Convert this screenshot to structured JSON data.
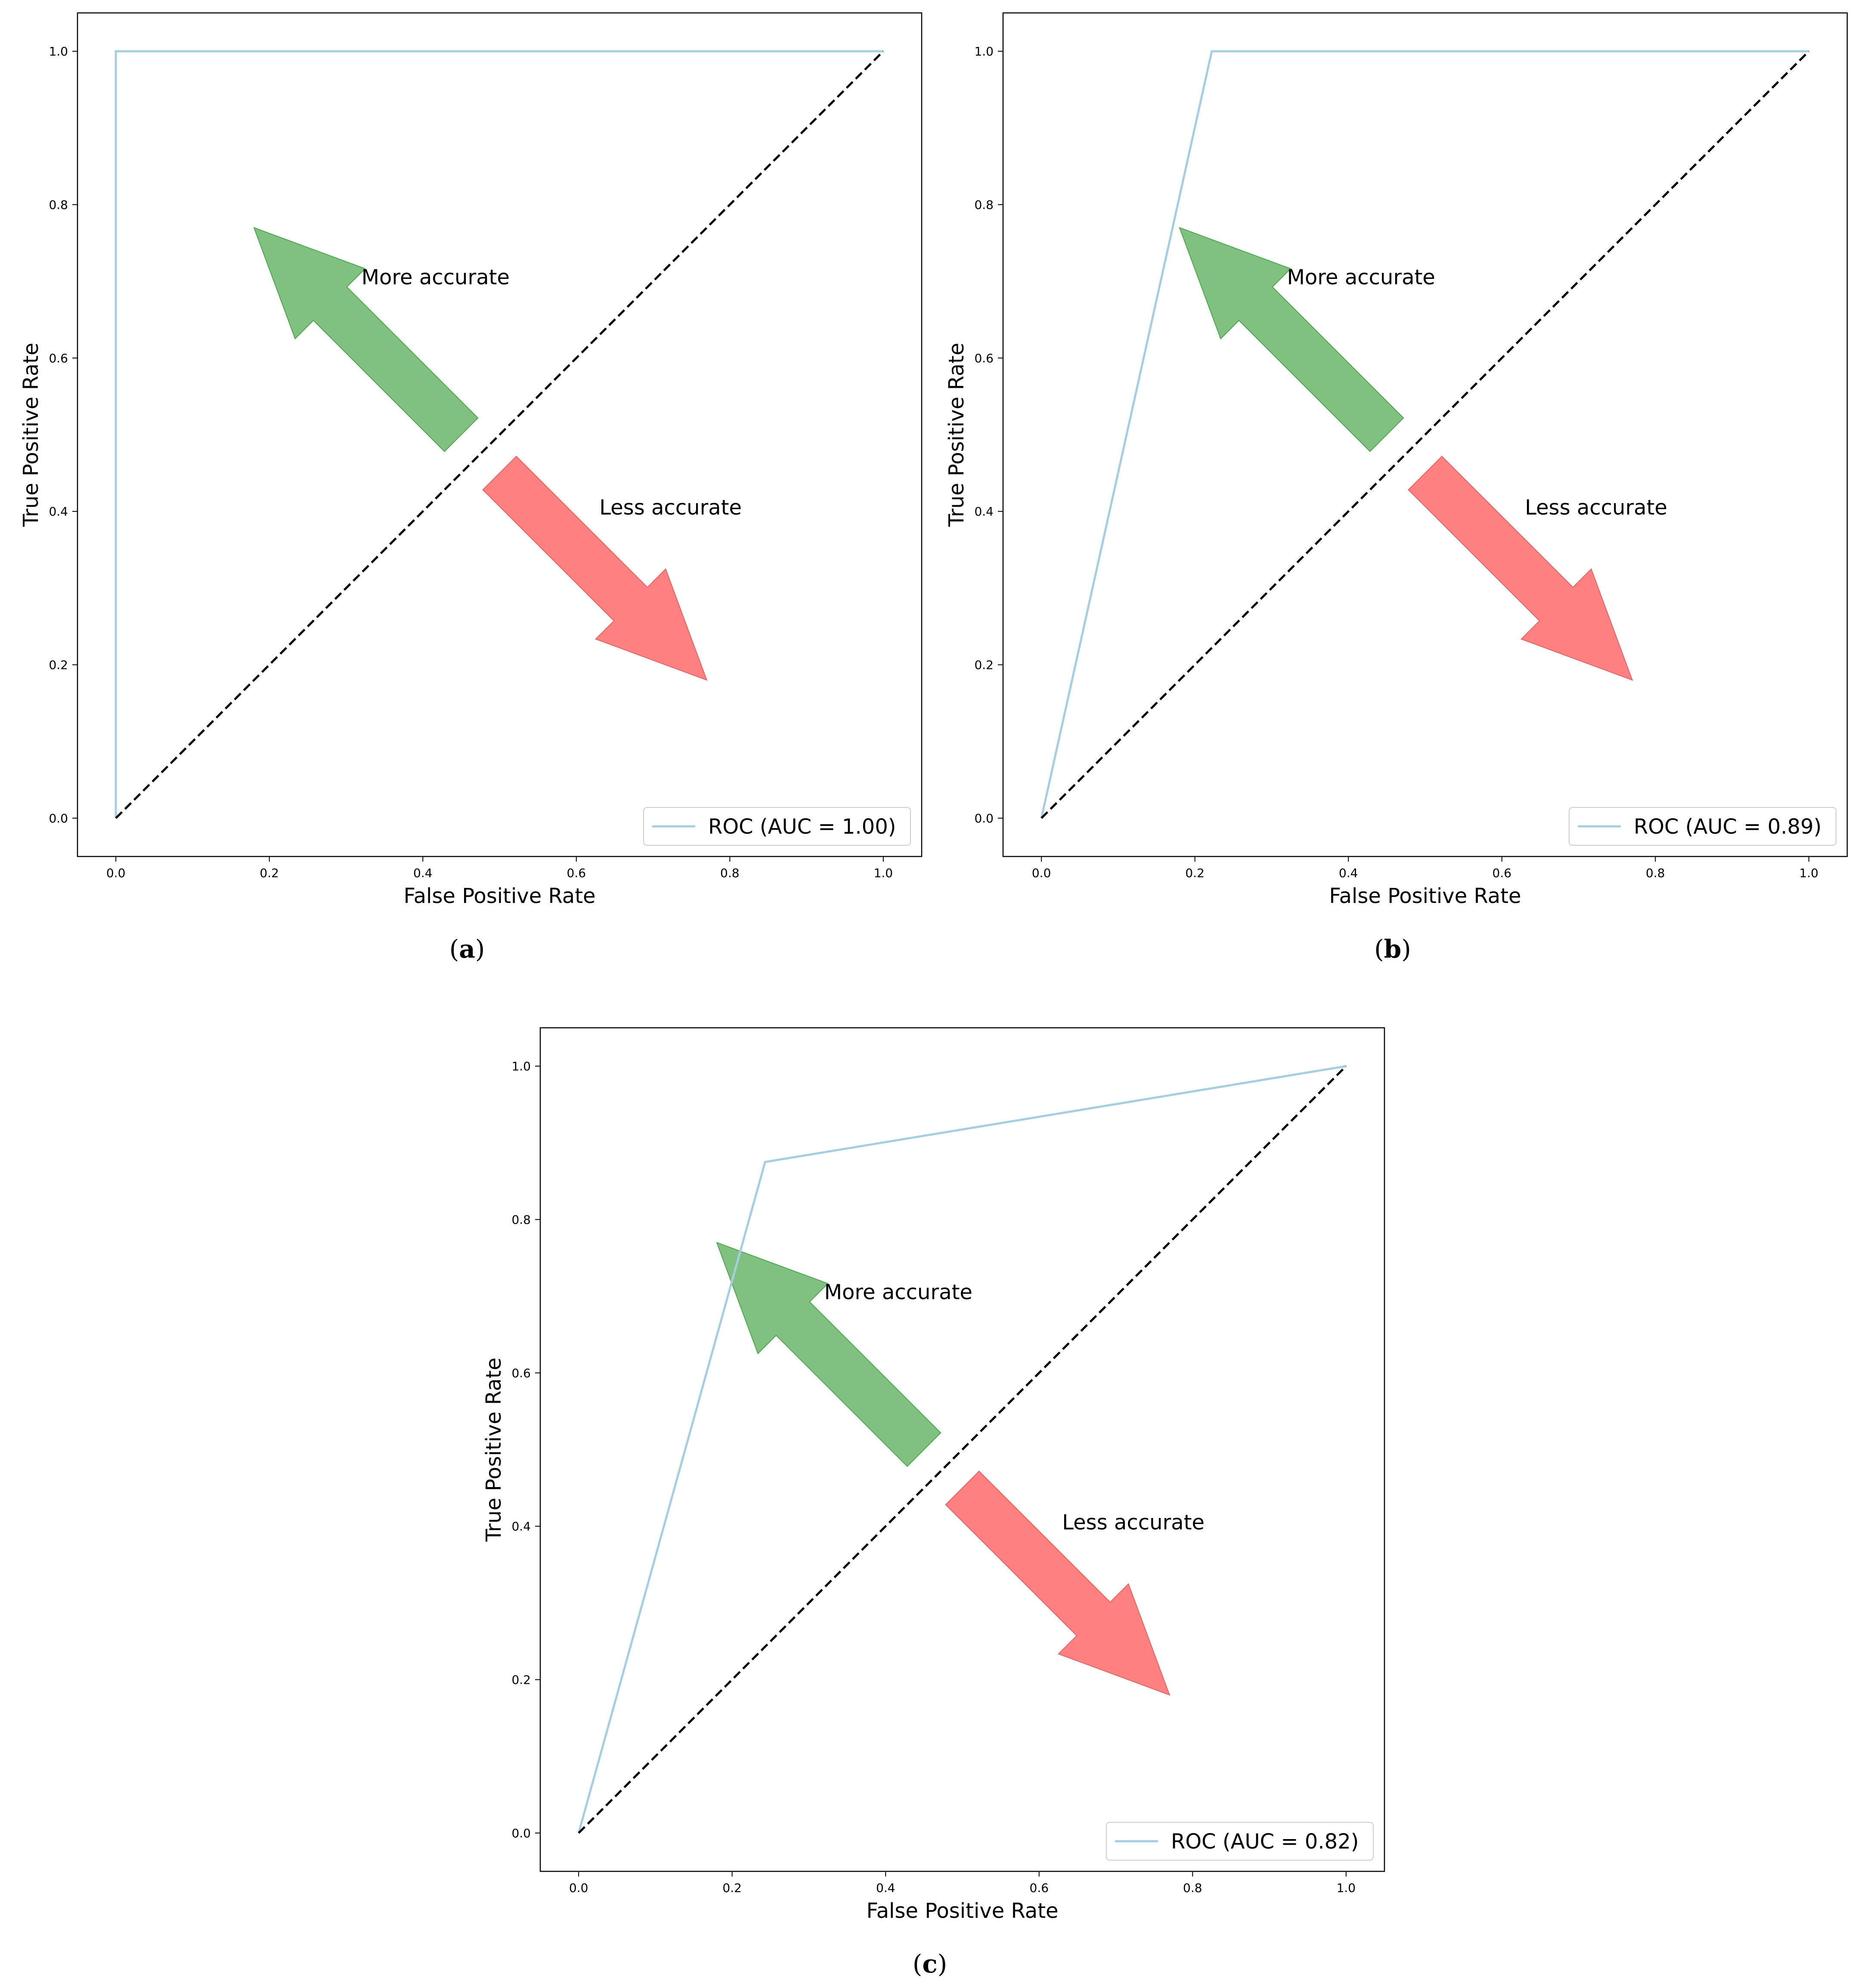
{
  "colors": {
    "roc_line": "#a6cee3",
    "diagonal": "#000000",
    "more_arrow_fill": "#80c080",
    "more_arrow_edge": "#4ca64c",
    "less_arrow_fill": "#ff8080",
    "less_arrow_edge": "#e06666",
    "legend_border": "#cccccc"
  },
  "chart_data": [
    {
      "type": "line",
      "caption": "(a)",
      "caption_letter": "a",
      "xlabel": "False Positive Rate",
      "ylabel": "True Positive Rate",
      "xlim": [
        -0.05,
        1.05
      ],
      "ylim": [
        -0.05,
        1.05
      ],
      "xticks": [
        "0.0",
        "0.2",
        "0.4",
        "0.6",
        "0.8",
        "1.0"
      ],
      "yticks": [
        "0.0",
        "0.2",
        "0.4",
        "0.6",
        "0.8",
        "1.0"
      ],
      "series": [
        {
          "name": "ROC (AUC = 1.00)",
          "x": [
            0.0,
            0.0,
            1.0
          ],
          "y": [
            0.0,
            1.0,
            1.0
          ]
        },
        {
          "name": "chance",
          "style": "dashed",
          "x": [
            0.0,
            1.0
          ],
          "y": [
            0.0,
            1.0
          ]
        }
      ],
      "legend": {
        "label": "ROC (AUC = 1.00)",
        "location": "lower right"
      },
      "annotations": [
        {
          "text": "More accurate",
          "x": 0.32,
          "y": 0.705,
          "arrow_from": [
            0.45,
            0.5
          ],
          "arrow_to": [
            0.18,
            0.77
          ],
          "direction": "up-left"
        },
        {
          "text": "Less accurate",
          "x": 0.63,
          "y": 0.405,
          "arrow_from": [
            0.5,
            0.45
          ],
          "arrow_to": [
            0.77,
            0.18
          ],
          "direction": "down-right"
        }
      ]
    },
    {
      "type": "line",
      "caption": "(b)",
      "caption_letter": "b",
      "xlabel": "False Positive Rate",
      "ylabel": "True Positive Rate",
      "xlim": [
        -0.05,
        1.05
      ],
      "ylim": [
        -0.05,
        1.05
      ],
      "xticks": [
        "0.0",
        "0.2",
        "0.4",
        "0.6",
        "0.8",
        "1.0"
      ],
      "yticks": [
        "0.0",
        "0.2",
        "0.4",
        "0.6",
        "0.8",
        "1.0"
      ],
      "series": [
        {
          "name": "ROC (AUC = 0.89)",
          "x": [
            0.0,
            0.222,
            1.0
          ],
          "y": [
            0.0,
            1.0,
            1.0
          ]
        },
        {
          "name": "chance",
          "style": "dashed",
          "x": [
            0.0,
            1.0
          ],
          "y": [
            0.0,
            1.0
          ]
        }
      ],
      "legend": {
        "label": "ROC (AUC = 0.89)",
        "location": "lower right"
      },
      "annotations": [
        {
          "text": "More accurate",
          "x": 0.32,
          "y": 0.705,
          "arrow_from": [
            0.45,
            0.5
          ],
          "arrow_to": [
            0.18,
            0.77
          ],
          "direction": "up-left"
        },
        {
          "text": "Less accurate",
          "x": 0.63,
          "y": 0.405,
          "arrow_from": [
            0.5,
            0.45
          ],
          "arrow_to": [
            0.77,
            0.18
          ],
          "direction": "down-right"
        }
      ]
    },
    {
      "type": "line",
      "caption": "(c)",
      "caption_letter": "c",
      "xlabel": "False Positive Rate",
      "ylabel": "True Positive Rate",
      "xlim": [
        -0.05,
        1.05
      ],
      "ylim": [
        -0.05,
        1.05
      ],
      "xticks": [
        "0.0",
        "0.2",
        "0.4",
        "0.6",
        "0.8",
        "1.0"
      ],
      "yticks": [
        "0.0",
        "0.2",
        "0.4",
        "0.6",
        "0.8",
        "1.0"
      ],
      "series": [
        {
          "name": "ROC (AUC = 0.82)",
          "x": [
            0.0,
            0.243,
            1.0
          ],
          "y": [
            0.0,
            0.875,
            1.0
          ]
        },
        {
          "name": "chance",
          "style": "dashed",
          "x": [
            0.0,
            1.0
          ],
          "y": [
            0.0,
            1.0
          ]
        }
      ],
      "legend": {
        "label": "ROC (AUC = 0.82)",
        "location": "lower right"
      },
      "annotations": [
        {
          "text": "More accurate",
          "x": 0.32,
          "y": 0.705,
          "arrow_from": [
            0.45,
            0.5
          ],
          "arrow_to": [
            0.18,
            0.77
          ],
          "direction": "up-left"
        },
        {
          "text": "Less accurate",
          "x": 0.63,
          "y": 0.405,
          "arrow_from": [
            0.5,
            0.45
          ],
          "arrow_to": [
            0.77,
            0.18
          ],
          "direction": "down-right"
        }
      ]
    }
  ]
}
